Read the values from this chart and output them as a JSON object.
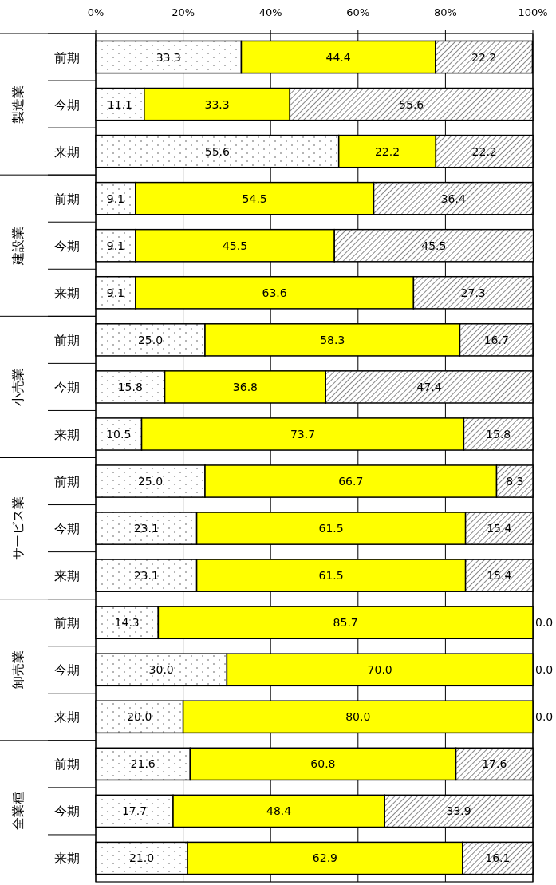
{
  "chart_data": {
    "type": "bar",
    "orientation": "horizontal",
    "stacked": true,
    "grid": "x",
    "categories": [
      "前期",
      "今期",
      "来期",
      "前期",
      "今期",
      "来期",
      "前期",
      "今期",
      "来期",
      "前期",
      "今期",
      "来期",
      "前期",
      "今期",
      "来期",
      "前期",
      "今期",
      "来期"
    ],
    "annotations": [
      "製造業",
      "建設業",
      "小売業",
      "サービス業",
      "卸売業",
      "全業種"
    ],
    "xlim": [
      0,
      100
    ],
    "xticks": [
      {
        "value": 0,
        "label": "0%"
      },
      {
        "value": 20,
        "label": "20%"
      },
      {
        "value": 40,
        "label": "40%"
      },
      {
        "value": 60,
        "label": "60%"
      },
      {
        "value": 80,
        "label": "80%"
      },
      {
        "value": 100,
        "label": "100%"
      }
    ],
    "series": [
      {
        "color": "#ffffff",
        "values": [
          33.3,
          11.1,
          55.6,
          9.1,
          9.1,
          9.1,
          25.0,
          15.8,
          10.5,
          25.0,
          23.1,
          23.1,
          14.3,
          30.0,
          20.0,
          21.6,
          17.7,
          21.0
        ],
        "value_labels": [
          "33.3",
          "11.1",
          "55.6",
          "9.1",
          "9.1",
          "9.1",
          "25.0",
          "15.8",
          "10.5",
          "25.0",
          "23.1",
          "23.1",
          "14.3",
          "30.0",
          "20.0",
          "21.6",
          "17.7",
          "21.0"
        ]
      },
      {
        "color": "#ffff00",
        "values": [
          44.4,
          33.3,
          22.2,
          54.5,
          45.5,
          63.6,
          58.3,
          36.8,
          73.7,
          66.7,
          61.5,
          61.5,
          85.7,
          70.0,
          80.0,
          60.8,
          48.4,
          62.9
        ],
        "value_labels": [
          "44.4",
          "33.3",
          "22.2",
          "54.5",
          "45.5",
          "63.6",
          "58.3",
          "36.8",
          "73.7",
          "66.7",
          "61.5",
          "61.5",
          "85.7",
          "70.0",
          "80.0",
          "60.8",
          "48.4",
          "62.9"
        ]
      },
      {
        "color": "#ffffff",
        "values": [
          22.2,
          55.6,
          22.2,
          36.4,
          45.5,
          27.3,
          16.7,
          47.4,
          15.8,
          8.3,
          15.4,
          15.4,
          0,
          0,
          0,
          17.6,
          33.9,
          16.1
        ],
        "value_labels": [
          "22.2",
          "55.6",
          "22.2",
          "36.4",
          "45.5",
          "27.3",
          "16.7",
          "47.4",
          "15.8",
          "8.3",
          "15.4",
          "15.4",
          "0.0",
          "0.0",
          "0.0",
          "17.6",
          "33.9",
          "16.1"
        ]
      }
    ]
  }
}
